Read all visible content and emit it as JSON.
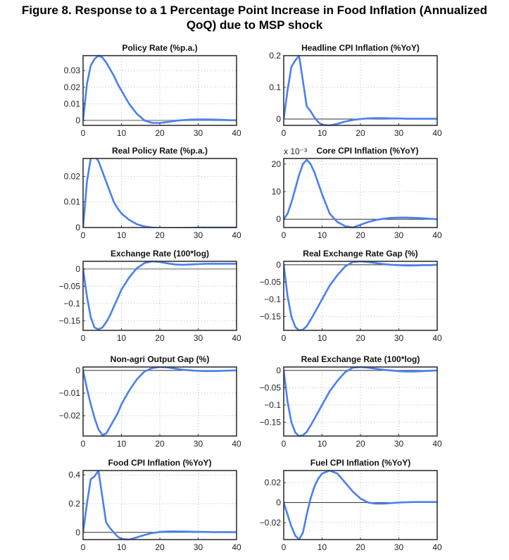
{
  "figure_title": [
    "Figure 8. Response to a 1 Percentage Point Increase in Food Inflation (Annualized",
    "QoQ) due to MSP shock"
  ],
  "line_color": "#4a7ff0",
  "chart_data": [
    {
      "type": "line",
      "title": "Policy Rate (%p.a.)",
      "xlim": [
        0,
        40
      ],
      "ylim": [
        -0.003,
        0.039
      ],
      "xticks": [
        0,
        10,
        20,
        30,
        40
      ],
      "yticks": [
        0,
        0.01,
        0.02,
        0.03
      ],
      "ytick_labels": [
        "0",
        "0.01",
        "0.02",
        "0.03"
      ],
      "zero_line": "gray",
      "grid": true,
      "x": [
        0,
        1,
        2,
        3,
        4,
        5,
        6,
        7,
        8,
        9,
        10,
        12,
        14,
        16,
        18,
        20,
        22,
        24,
        26,
        28,
        30,
        32,
        34,
        36,
        38,
        40
      ],
      "y": [
        0,
        0.022,
        0.033,
        0.037,
        0.039,
        0.038,
        0.035,
        0.031,
        0.027,
        0.022,
        0.018,
        0.01,
        0.004,
        0.0,
        -0.0015,
        -0.0015,
        -0.001,
        -0.0003,
        0.0002,
        0.0005,
        0.0006,
        0.0006,
        0.0005,
        0.0004,
        0.0002,
        0.0001
      ]
    },
    {
      "type": "line",
      "title": "Headline CPI Inflation (%YoY)",
      "xlim": [
        0,
        40
      ],
      "ylim": [
        -0.02,
        0.2
      ],
      "xticks": [
        0,
        10,
        20,
        30,
        40
      ],
      "yticks": [
        0,
        0.1,
        0.2
      ],
      "ytick_labels": [
        "0",
        "0.1",
        "0.2"
      ],
      "grid": true,
      "x": [
        0,
        1,
        2,
        3,
        4,
        5,
        6,
        7,
        8,
        9,
        10,
        12,
        14,
        16,
        18,
        20,
        22,
        24,
        26,
        28,
        30,
        32,
        34,
        36,
        38,
        40
      ],
      "y": [
        0,
        0.09,
        0.165,
        0.185,
        0.2,
        0.12,
        0.04,
        0.025,
        0.005,
        -0.01,
        -0.018,
        -0.02,
        -0.015,
        -0.008,
        -0.003,
        0,
        0.002,
        0.003,
        0.003,
        0.002,
        0.002,
        0.001,
        0.001,
        0.001,
        0.001,
        0.001
      ]
    },
    {
      "type": "line",
      "title": "Real Policy Rate (%p.a.)",
      "xlim": [
        0,
        40
      ],
      "ylim": [
        0,
        0.027
      ],
      "xticks": [
        0,
        10,
        20,
        30,
        40
      ],
      "yticks": [
        0,
        0.01,
        0.02
      ],
      "ytick_labels": [
        "0",
        "0.01",
        "0.02"
      ],
      "grid": true,
      "x": [
        0,
        1,
        2,
        3,
        4,
        5,
        6,
        7,
        8,
        9,
        10,
        12,
        14,
        16,
        18,
        20,
        22,
        24,
        26,
        28,
        30,
        32,
        34,
        36,
        38,
        40
      ],
      "y": [
        0,
        0.018,
        0.027,
        0.028,
        0.026,
        0.022,
        0.018,
        0.014,
        0.01,
        0.0075,
        0.0055,
        0.003,
        0.0013,
        0.0004,
        0,
        -0.0002,
        -0.0003,
        -0.0003,
        -0.0002,
        -0.0001,
        0,
        0,
        0,
        0,
        0,
        0
      ]
    },
    {
      "type": "line",
      "title": "Core CPI Inflation (%YoY)",
      "scale_label": "x 10⁻³",
      "xlim": [
        0,
        40
      ],
      "ylim": [
        -3,
        22
      ],
      "xticks": [
        0,
        10,
        20,
        30,
        40
      ],
      "yticks": [
        0,
        10,
        20
      ],
      "ytick_labels": [
        "0",
        "10",
        "20"
      ],
      "grid": true,
      "x": [
        0,
        1,
        2,
        3,
        4,
        5,
        6,
        7,
        8,
        9,
        10,
        12,
        14,
        16,
        18,
        20,
        22,
        24,
        26,
        28,
        30,
        32,
        34,
        36,
        38,
        40
      ],
      "y": [
        0,
        2,
        6,
        11,
        16,
        20,
        21.5,
        20,
        17,
        13,
        9,
        2,
        -1,
        -2.5,
        -3,
        -2,
        -1,
        -0.3,
        0.2,
        0.5,
        0.6,
        0.6,
        0.5,
        0.4,
        0.2,
        0
      ]
    },
    {
      "type": "line",
      "title": "Exchange Rate (100*log)",
      "xlim": [
        0,
        40
      ],
      "ylim": [
        -0.178,
        0.022
      ],
      "xticks": [
        0,
        10,
        20,
        30,
        40
      ],
      "yticks": [
        0,
        -0.05,
        -0.1,
        -0.15
      ],
      "ytick_labels": [
        "0",
        "-0.05",
        "-0.1",
        "-0.15"
      ],
      "zero_line": "gray",
      "grid": true,
      "x": [
        0,
        1,
        2,
        3,
        4,
        5,
        6,
        7,
        8,
        9,
        10,
        12,
        14,
        16,
        18,
        20,
        22,
        24,
        26,
        28,
        30,
        32,
        34,
        36,
        38,
        40
      ],
      "y": [
        0,
        -0.08,
        -0.14,
        -0.17,
        -0.175,
        -0.17,
        -0.155,
        -0.135,
        -0.11,
        -0.085,
        -0.06,
        -0.025,
        0.002,
        0.017,
        0.022,
        0.02,
        0.016,
        0.013,
        0.012,
        0.013,
        0.014,
        0.015,
        0.015,
        0.015,
        0.015,
        0.015
      ]
    },
    {
      "type": "line",
      "title": "Real Exchange Rate Gap (%)",
      "xlim": [
        0,
        40
      ],
      "ylim": [
        -0.19,
        0.01
      ],
      "xticks": [
        0,
        10,
        20,
        30,
        40
      ],
      "yticks": [
        0,
        -0.05,
        -0.1,
        -0.15
      ],
      "ytick_labels": [
        "0",
        "-0.05",
        "-0.1",
        "-0.15"
      ],
      "grid": true,
      "x": [
        0,
        1,
        2,
        3,
        4,
        5,
        6,
        7,
        8,
        9,
        10,
        12,
        14,
        16,
        18,
        20,
        22,
        24,
        26,
        28,
        30,
        32,
        34,
        36,
        38,
        40
      ],
      "y": [
        0,
        -0.09,
        -0.15,
        -0.18,
        -0.19,
        -0.188,
        -0.178,
        -0.16,
        -0.14,
        -0.12,
        -0.1,
        -0.06,
        -0.03,
        -0.005,
        0.008,
        0.01,
        0.008,
        0.005,
        0.002,
        0,
        -0.001,
        -0.002,
        -0.002,
        -0.001,
        -0.001,
        0
      ]
    },
    {
      "type": "line",
      "title": "Non-agri Output Gap (%)",
      "xlim": [
        0,
        40
      ],
      "ylim": [
        -0.029,
        0.0015
      ],
      "xticks": [
        0,
        10,
        20,
        30,
        40
      ],
      "yticks": [
        0,
        -0.01,
        -0.02
      ],
      "ytick_labels": [
        "0",
        "-0.01",
        "-0.02"
      ],
      "grid": true,
      "x": [
        0,
        1,
        2,
        3,
        4,
        5,
        6,
        7,
        8,
        9,
        10,
        12,
        14,
        16,
        18,
        20,
        22,
        24,
        26,
        28,
        30,
        32,
        34,
        36,
        38,
        40
      ],
      "y": [
        0,
        -0.008,
        -0.015,
        -0.021,
        -0.026,
        -0.0285,
        -0.028,
        -0.025,
        -0.022,
        -0.019,
        -0.015,
        -0.009,
        -0.004,
        -0.0005,
        0.001,
        0.0015,
        0.0013,
        0.0008,
        0.0003,
        0,
        -0.0002,
        -0.0003,
        -0.0003,
        -0.0002,
        -0.0001,
        0
      ]
    },
    {
      "type": "line",
      "title": "Real Exchange Rate (100*log)",
      "xlim": [
        0,
        40
      ],
      "ylim": [
        -0.19,
        0.01
      ],
      "xticks": [
        0,
        10,
        20,
        30,
        40
      ],
      "yticks": [
        0,
        -0.05,
        -0.1,
        -0.15
      ],
      "ytick_labels": [
        "0",
        "-0.05",
        "-0.1",
        "-0.15"
      ],
      "grid": true,
      "x": [
        0,
        1,
        2,
        3,
        4,
        5,
        6,
        7,
        8,
        9,
        10,
        12,
        14,
        16,
        18,
        20,
        22,
        24,
        26,
        28,
        30,
        32,
        34,
        36,
        38,
        40
      ],
      "y": [
        0,
        -0.09,
        -0.15,
        -0.18,
        -0.19,
        -0.188,
        -0.178,
        -0.16,
        -0.14,
        -0.12,
        -0.1,
        -0.06,
        -0.03,
        -0.005,
        0.008,
        0.01,
        0.008,
        0.005,
        0.002,
        0,
        -0.002,
        -0.003,
        -0.003,
        -0.002,
        -0.001,
        0
      ]
    },
    {
      "type": "line",
      "title": "Food CPI Inflation (%YoY)",
      "xlim": [
        0,
        40
      ],
      "ylim": [
        -0.05,
        0.43
      ],
      "xticks": [
        0,
        10,
        20,
        30,
        40
      ],
      "yticks": [
        0,
        0.2,
        0.4
      ],
      "ytick_labels": [
        "0",
        "0.2",
        "0.4"
      ],
      "grid": true,
      "x": [
        0,
        1,
        2,
        3,
        4,
        5,
        6,
        7,
        8,
        9,
        10,
        12,
        14,
        16,
        18,
        20,
        22,
        24,
        26,
        28,
        30,
        32,
        34,
        36,
        38,
        40
      ],
      "y": [
        0,
        0.2,
        0.37,
        0.39,
        0.43,
        0.25,
        0.07,
        0.03,
        0,
        -0.03,
        -0.045,
        -0.05,
        -0.035,
        -0.018,
        -0.005,
        0.003,
        0.006,
        0.007,
        0.006,
        0.005,
        0.004,
        0.003,
        0.002,
        0.002,
        0.002,
        0.002
      ]
    },
    {
      "type": "line",
      "title": "Fuel CPI Inflation (%YoY)",
      "xlim": [
        0,
        40
      ],
      "ylim": [
        -0.037,
        0.032
      ],
      "xticks": [
        0,
        10,
        20,
        30,
        40
      ],
      "yticks": [
        -0.02,
        0,
        0.02
      ],
      "ytick_labels": [
        "-0.02",
        "0",
        "0.02"
      ],
      "grid": true,
      "x": [
        0,
        1,
        2,
        3,
        4,
        5,
        6,
        7,
        8,
        9,
        10,
        12,
        14,
        16,
        18,
        20,
        22,
        24,
        26,
        28,
        30,
        32,
        34,
        36,
        38,
        40
      ],
      "y": [
        0,
        -0.012,
        -0.024,
        -0.033,
        -0.037,
        -0.03,
        -0.012,
        0.004,
        0.016,
        0.024,
        0.029,
        0.032,
        0.029,
        0.02,
        0.011,
        0.004,
        0,
        -0.001,
        -0.001,
        -0.0005,
        0,
        0.0003,
        0.0005,
        0.0005,
        0.0005,
        0.0005
      ]
    }
  ]
}
